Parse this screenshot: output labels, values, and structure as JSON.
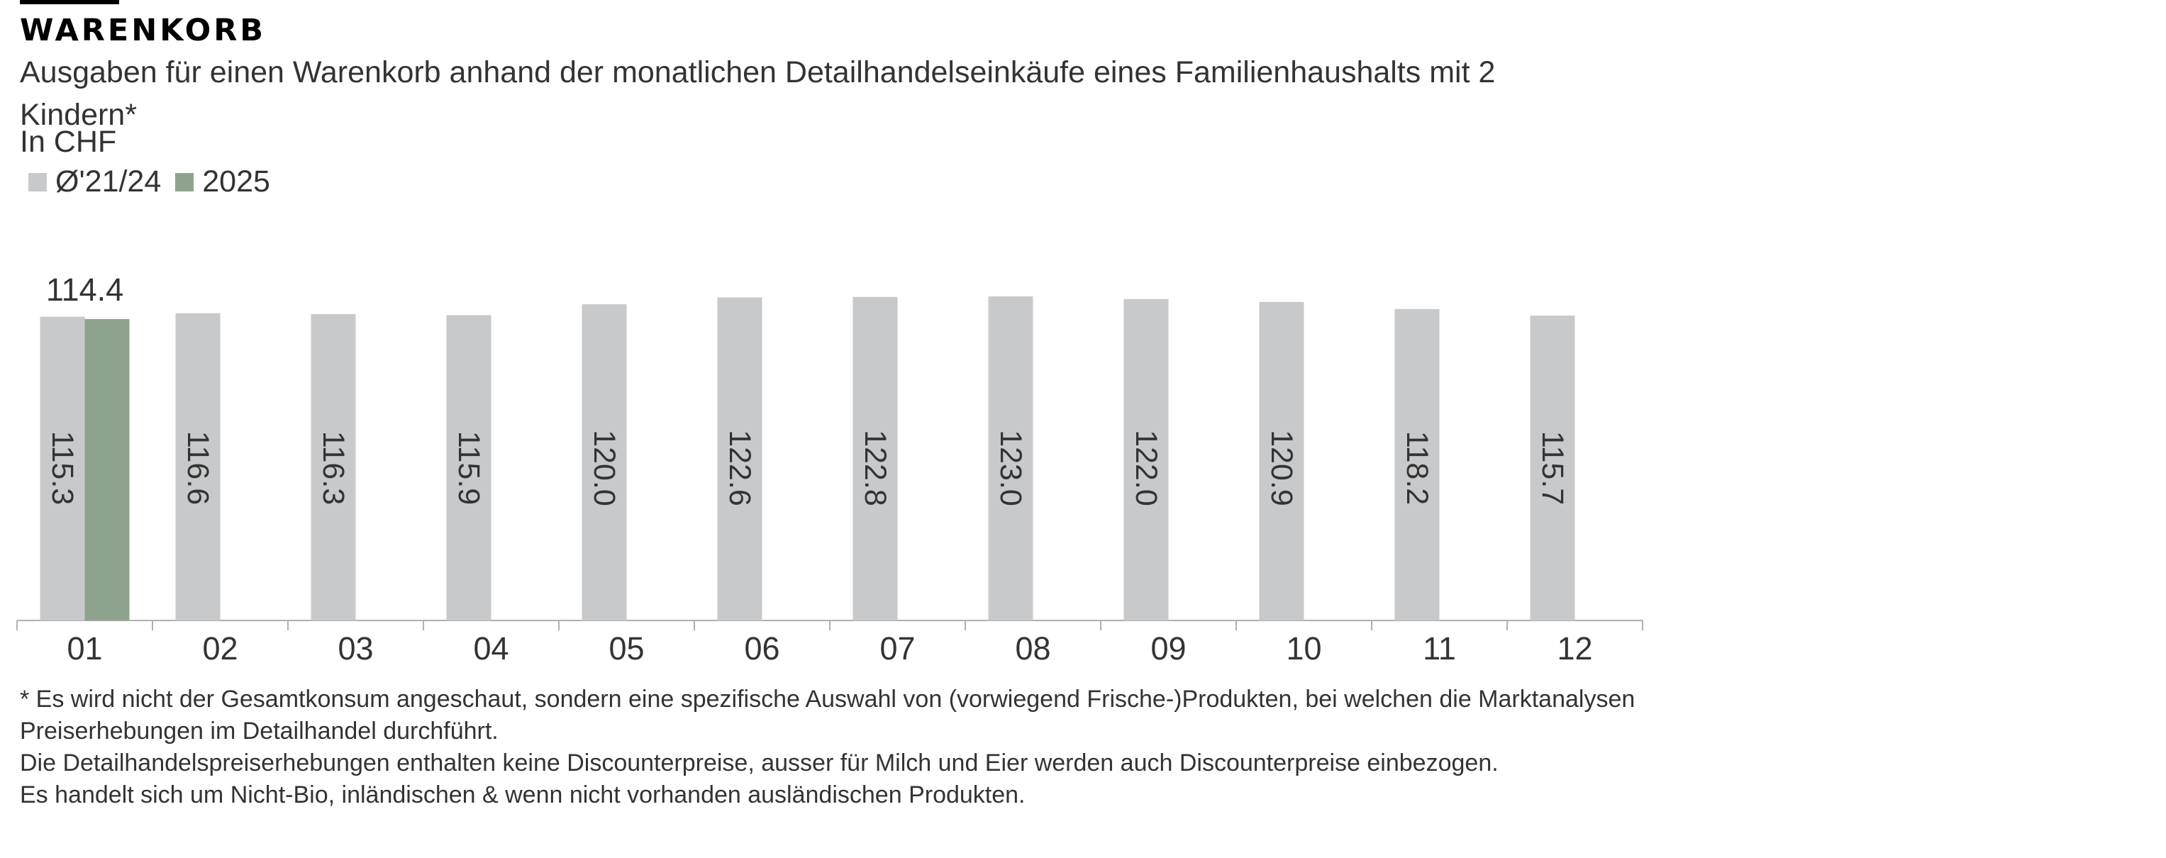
{
  "header": {
    "kicker": "WARENKORB",
    "title": "Ausgaben für einen Warenkorb anhand der monatlichen Detailhandelseinkäufe eines Familienhaushalts mit 2 Kindern*",
    "unit": "In CHF"
  },
  "legend": [
    {
      "label": "Ø'21/24",
      "color": "#c8c9cb"
    },
    {
      "label": "2025",
      "color": "#8ea38e"
    }
  ],
  "chart_data": {
    "type": "bar",
    "categories": [
      "01",
      "02",
      "03",
      "04",
      "05",
      "06",
      "07",
      "08",
      "09",
      "10",
      "11",
      "12"
    ],
    "series": [
      {
        "name": "Ø'21/24",
        "color": "#c8c9cb",
        "values": [
          115.3,
          116.6,
          116.3,
          115.9,
          120.0,
          122.6,
          122.8,
          123.0,
          122.0,
          120.9,
          118.2,
          115.7
        ]
      },
      {
        "name": "2025",
        "color": "#8ea38e",
        "values": [
          114.4,
          null,
          null,
          null,
          null,
          null,
          null,
          null,
          null,
          null,
          null,
          null
        ]
      }
    ],
    "value_labels_avg": [
      "115.3",
      "116.6",
      "116.3",
      "115.9",
      "120.0",
      "122.6",
      "122.8",
      "123.0",
      "122.0",
      "120.9",
      "118.2",
      "115.7"
    ],
    "value_labels_2025": [
      "114.4"
    ],
    "ylim": [
      0,
      130
    ],
    "grid": false,
    "legend_position": "top-left"
  },
  "footnotes": [
    "* Es wird nicht der Gesamtkonsum angeschaut, sondern eine spezifische Auswahl von (vorwiegend Frische-)Produkten, bei welchen die Marktanalysen Preiserhebungen im Detailhandel durchführt.",
    "Die Detailhandelspreiserhebungen enthalten keine Discounterpreise, ausser für Milch und Eier werden auch Discounterpreise einbezogen.",
    "Es handelt sich um Nicht-Bio, inländischen & wenn nicht vorhanden ausländischen Produkten."
  ]
}
